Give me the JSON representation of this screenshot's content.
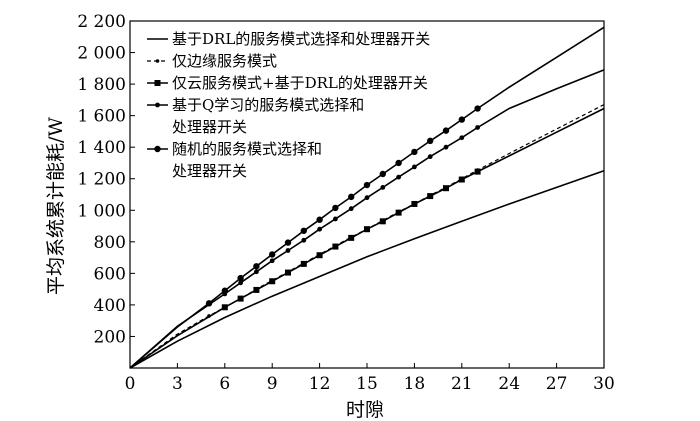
{
  "chart_data": {
    "type": "line",
    "xlabel": "时隙",
    "ylabel": "平均系统累计能耗/W",
    "xlim": [
      0,
      30
    ],
    "ylim": [
      0,
      2200
    ],
    "xticks": [
      0,
      3,
      6,
      9,
      12,
      15,
      18,
      21,
      24,
      27,
      30
    ],
    "yticks": [
      200,
      400,
      600,
      800,
      1000,
      1200,
      1400,
      1600,
      1800,
      2000,
      2200
    ],
    "xtick_labels": [
      "0",
      "3",
      "6",
      "9",
      "12",
      "15",
      "18",
      "21",
      "24",
      "27",
      "30"
    ],
    "ytick_labels": [
      "200",
      "400",
      "600",
      "800",
      "1 000",
      "1 200",
      "1 400",
      "1 600",
      "1 800",
      "2 000",
      "2 200"
    ],
    "legend_position": "top-left",
    "series": [
      {
        "name": "基于DRL的服务模式选择和处理器开关",
        "line": "solid",
        "marker": "none",
        "x": [
          0,
          3,
          6,
          9,
          12,
          15,
          18,
          21,
          24,
          27,
          30
        ],
        "y": [
          0,
          170,
          320,
          455,
          580,
          705,
          820,
          930,
          1040,
          1145,
          1250
        ]
      },
      {
        "name": "仅边缘服务模式",
        "line": "dashed",
        "marker": "small-dot",
        "x": [
          0,
          3,
          5,
          6,
          7,
          8,
          9,
          10,
          11,
          12,
          13,
          14,
          15,
          16,
          17,
          18,
          19,
          20,
          21,
          22,
          24,
          27,
          30
        ],
        "y": [
          0,
          215,
          330,
          385,
          440,
          500,
          555,
          610,
          665,
          720,
          775,
          830,
          880,
          935,
          990,
          1040,
          1095,
          1145,
          1200,
          1255,
          1360,
          1515,
          1670
        ]
      },
      {
        "name": "仅云服务模式+基于DRL的处理器开关",
        "line": "solid",
        "marker": "square",
        "x": [
          0,
          3,
          6,
          7,
          8,
          9,
          10,
          11,
          12,
          13,
          14,
          15,
          16,
          17,
          18,
          19,
          20,
          21,
          22,
          24,
          27,
          30
        ],
        "y": [
          0,
          205,
          385,
          440,
          495,
          550,
          605,
          660,
          715,
          770,
          825,
          880,
          930,
          985,
          1040,
          1090,
          1140,
          1195,
          1245,
          1345,
          1495,
          1645
        ]
      },
      {
        "name": "基于Q学习的服务模式选择和处理器开关",
        "legend_lines": [
          "基于Q学习的服务模式选择和",
          "处理器开关"
        ],
        "line": "solid",
        "marker": "small-circle",
        "x": [
          0,
          3,
          6,
          7,
          8,
          9,
          10,
          11,
          12,
          13,
          14,
          15,
          16,
          17,
          18,
          19,
          20,
          21,
          22,
          24,
          27,
          30
        ],
        "y": [
          0,
          265,
          470,
          540,
          610,
          680,
          745,
          810,
          880,
          945,
          1010,
          1080,
          1145,
          1210,
          1275,
          1340,
          1400,
          1460,
          1525,
          1645,
          1770,
          1890
        ]
      },
      {
        "name": "随机的服务模式选择和处理器开关",
        "legend_lines": [
          "随机的服务模式选择和",
          "处理器开关"
        ],
        "line": "solid",
        "marker": "circle",
        "x": [
          0,
          3,
          5,
          6,
          7,
          8,
          9,
          10,
          11,
          12,
          13,
          14,
          15,
          16,
          17,
          18,
          19,
          20,
          21,
          22,
          24,
          27,
          30
        ],
        "y": [
          0,
          260,
          410,
          490,
          570,
          645,
          720,
          795,
          870,
          940,
          1015,
          1085,
          1160,
          1230,
          1300,
          1370,
          1440,
          1505,
          1575,
          1645,
          1780,
          1970,
          2160
        ]
      }
    ]
  }
}
